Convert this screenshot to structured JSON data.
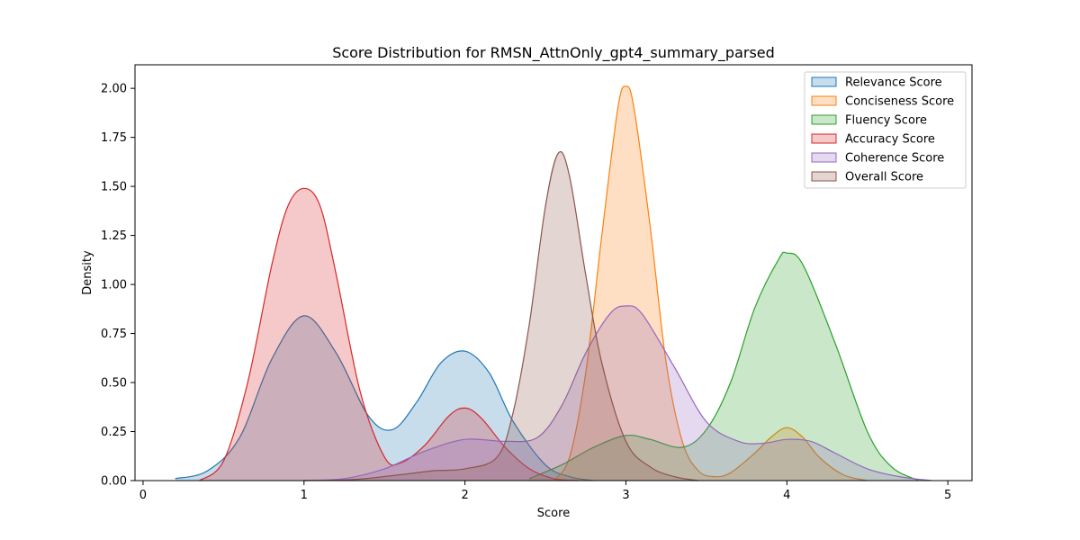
{
  "chart_data": {
    "type": "area",
    "title": "Score Distribution for RMSN_AttnOnly_gpt4_summary_parsed",
    "xlabel": "Score",
    "ylabel": "Density",
    "xlim": [
      -0.05,
      5.15
    ],
    "ylim": [
      0,
      2.12
    ],
    "x_ticks": [
      "0",
      "1",
      "2",
      "3",
      "4",
      "5"
    ],
    "y_ticks": [
      "0.00",
      "0.25",
      "0.50",
      "0.75",
      "1.00",
      "1.25",
      "1.50",
      "1.75",
      "2.00"
    ],
    "legend_position": "top-right",
    "grid": false,
    "series": [
      {
        "name": "Relevance Score",
        "color": "#1f77b4",
        "x": [
          0.2,
          0.4,
          0.6,
          0.8,
          1.0,
          1.2,
          1.4,
          1.55,
          1.7,
          1.85,
          2.0,
          2.15,
          2.3,
          2.5,
          2.65,
          2.8
        ],
        "y": [
          0.01,
          0.05,
          0.22,
          0.62,
          0.84,
          0.65,
          0.33,
          0.26,
          0.4,
          0.6,
          0.66,
          0.55,
          0.3,
          0.08,
          0.02,
          0.0
        ]
      },
      {
        "name": "Conciseness Score",
        "color": "#ff7f0e",
        "x": [
          2.55,
          2.65,
          2.75,
          2.85,
          2.95,
          3.0,
          3.05,
          3.15,
          3.25,
          3.35,
          3.45,
          3.55,
          3.65,
          3.8,
          3.9,
          4.0,
          4.1,
          4.2,
          4.35,
          4.5
        ],
        "y": [
          0.0,
          0.12,
          0.55,
          1.25,
          1.9,
          2.01,
          1.9,
          1.3,
          0.6,
          0.2,
          0.05,
          0.02,
          0.04,
          0.14,
          0.22,
          0.27,
          0.22,
          0.12,
          0.03,
          0.0
        ]
      },
      {
        "name": "Fluency Score",
        "color": "#2ca02c",
        "x": [
          2.4,
          2.6,
          2.8,
          3.0,
          3.15,
          3.35,
          3.5,
          3.65,
          3.8,
          3.95,
          4.0,
          4.1,
          4.3,
          4.5,
          4.65,
          4.82
        ],
        "y": [
          0.01,
          0.08,
          0.17,
          0.23,
          0.21,
          0.17,
          0.26,
          0.5,
          0.88,
          1.13,
          1.16,
          1.1,
          0.7,
          0.25,
          0.07,
          0.0
        ]
      },
      {
        "name": "Accuracy Score",
        "color": "#d62728",
        "x": [
          0.35,
          0.5,
          0.65,
          0.8,
          0.9,
          1.0,
          1.1,
          1.2,
          1.35,
          1.5,
          1.6,
          1.75,
          1.9,
          2.0,
          2.1,
          2.25,
          2.4,
          2.55,
          2.7
        ],
        "y": [
          0.0,
          0.1,
          0.5,
          1.1,
          1.4,
          1.49,
          1.4,
          1.05,
          0.45,
          0.12,
          0.09,
          0.18,
          0.33,
          0.37,
          0.32,
          0.17,
          0.06,
          0.01,
          0.0
        ]
      },
      {
        "name": "Coherence Score",
        "color": "#9467bd",
        "x": [
          1.0,
          1.25,
          1.5,
          1.75,
          2.0,
          2.25,
          2.45,
          2.6,
          2.75,
          2.9,
          3.0,
          3.1,
          3.3,
          3.5,
          3.7,
          3.85,
          4.0,
          4.15,
          4.3,
          4.5,
          4.7,
          4.9
        ],
        "y": [
          0.0,
          0.01,
          0.06,
          0.15,
          0.21,
          0.2,
          0.22,
          0.38,
          0.65,
          0.85,
          0.89,
          0.85,
          0.58,
          0.3,
          0.2,
          0.19,
          0.21,
          0.2,
          0.14,
          0.06,
          0.02,
          0.0
        ]
      },
      {
        "name": "Overall Score",
        "color": "#8c564b",
        "x": [
          1.0,
          1.3,
          1.6,
          1.8,
          2.0,
          2.2,
          2.3,
          2.4,
          2.5,
          2.58,
          2.65,
          2.75,
          2.85,
          3.0,
          3.15,
          3.3,
          3.45
        ],
        "y": [
          0.0,
          0.005,
          0.03,
          0.05,
          0.06,
          0.12,
          0.35,
          0.8,
          1.4,
          1.67,
          1.55,
          1.05,
          0.6,
          0.2,
          0.07,
          0.02,
          0.0
        ]
      }
    ]
  }
}
